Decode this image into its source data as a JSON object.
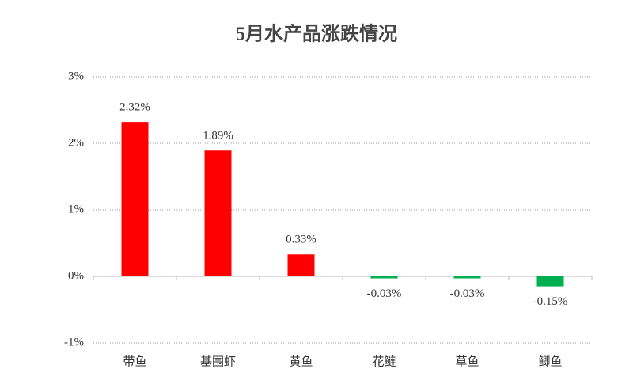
{
  "chart_data": {
    "type": "bar",
    "title": "5月水产品涨跌情况",
    "categories": [
      "带鱼",
      "基围虾",
      "黄鱼",
      "花鲢",
      "草鱼",
      "鲫鱼"
    ],
    "values": [
      2.32,
      1.89,
      0.33,
      -0.03,
      -0.03,
      -0.15
    ],
    "value_labels": [
      "2.32%",
      "1.89%",
      "0.33%",
      "-0.03%",
      "-0.03%",
      "-0.15%"
    ],
    "colors": [
      "#ff0000",
      "#ff0000",
      "#ff0000",
      "#00b050",
      "#00b050",
      "#00b050"
    ],
    "ylim": [
      -1,
      3
    ],
    "yticks": [
      {
        "value": -1,
        "label": "-1%"
      },
      {
        "value": 0,
        "label": "0%"
      },
      {
        "value": 1,
        "label": "1%"
      },
      {
        "value": 2,
        "label": "2%"
      },
      {
        "value": 3,
        "label": "3%"
      }
    ],
    "grid": true
  }
}
